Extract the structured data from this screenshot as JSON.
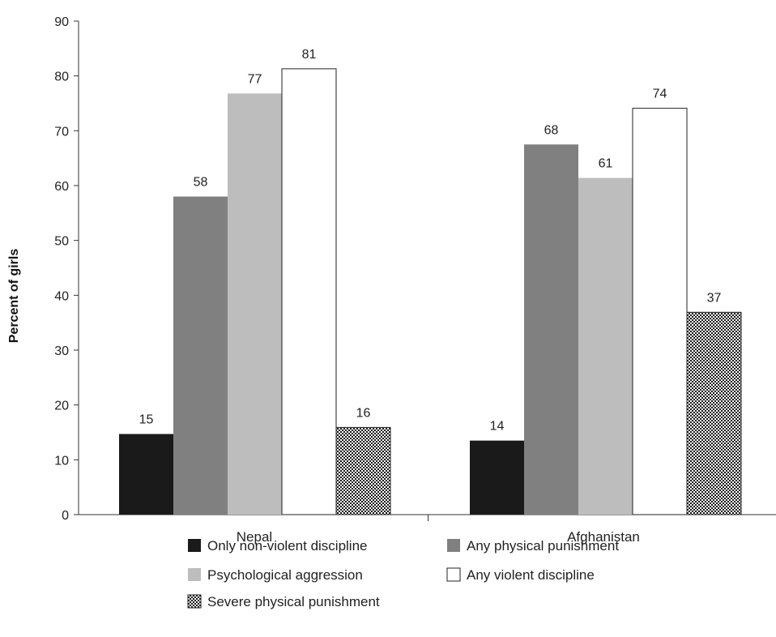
{
  "chart_data": {
    "type": "bar",
    "title": "",
    "xlabel": "",
    "ylabel": "Percent of girls",
    "ylim": [
      0,
      90
    ],
    "yticks": [
      0,
      10,
      20,
      30,
      40,
      50,
      60,
      70,
      80,
      90
    ],
    "grid": false,
    "legend_position": "bottom",
    "categories": [
      "Nepal",
      "Afghanistan"
    ],
    "series": [
      {
        "name": "Only non-violent discipline",
        "values": [
          15,
          14
        ],
        "values_plotted": [
          14.7,
          13.5
        ],
        "fill": "#1a1a1a",
        "pattern": "solid"
      },
      {
        "name": "Any physical punishment",
        "values": [
          58,
          68
        ],
        "values_plotted": [
          58.0,
          67.5
        ],
        "fill": "#808080",
        "pattern": "solid"
      },
      {
        "name": "Psychological aggression",
        "values": [
          77,
          61
        ],
        "values_plotted": [
          76.8,
          61.4
        ],
        "fill": "#bdbdbd",
        "pattern": "solid"
      },
      {
        "name": "Any violent discipline",
        "values": [
          81,
          74
        ],
        "values_plotted": [
          81.3,
          74.1
        ],
        "fill": "#ffffff",
        "pattern": "solid"
      },
      {
        "name": "Severe physical punishment",
        "values": [
          16,
          37
        ],
        "values_plotted": [
          15.9,
          36.9
        ],
        "fill": "#ffffff",
        "pattern": "checker"
      }
    ],
    "legend_layout": [
      [
        "Only non-violent discipline",
        "Any physical punishment"
      ],
      [
        "Psychological aggression",
        "Any violent discipline"
      ],
      [
        "Severe physical punishment"
      ]
    ]
  }
}
